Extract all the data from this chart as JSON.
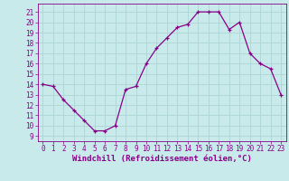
{
  "hours": [
    0,
    1,
    2,
    3,
    4,
    5,
    6,
    7,
    8,
    9,
    10,
    11,
    12,
    13,
    14,
    15,
    16,
    17,
    18,
    19,
    20,
    21,
    22,
    23
  ],
  "values": [
    14,
    13.8,
    12.5,
    11.5,
    10.5,
    9.5,
    9.5,
    10,
    13.5,
    13.8,
    16,
    17.5,
    18.5,
    19.5,
    19.8,
    21,
    21,
    21,
    19.3,
    20,
    17,
    16,
    15.5,
    13
  ],
  "line_color": "#880088",
  "marker": "+",
  "bg_color": "#c8eaea",
  "grid_color": "#b0d8d8",
  "xlabel": "Windchill (Refroidissement éolien,°C)",
  "ylabel_ticks": [
    9,
    10,
    11,
    12,
    13,
    14,
    15,
    16,
    17,
    18,
    19,
    20,
    21
  ],
  "ylim": [
    8.5,
    21.8
  ],
  "xlim": [
    -0.5,
    23.5
  ],
  "tick_color": "#880088",
  "label_color": "#880088",
  "xlabel_fontsize": 6.5,
  "tick_fontsize": 5.5
}
